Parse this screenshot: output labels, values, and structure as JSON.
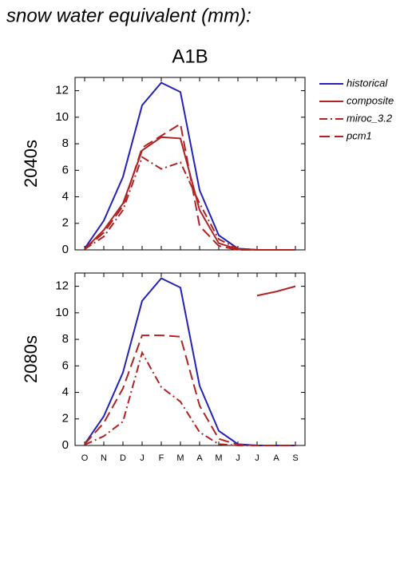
{
  "title": "snow water equivalent (mm):",
  "scenario": "A1B",
  "chart_data": [
    {
      "type": "line",
      "ylabel": "2040s",
      "ylim": [
        0,
        13
      ],
      "yticks": [
        0,
        2,
        4,
        6,
        8,
        10,
        12
      ],
      "series": [
        {
          "name": "historical",
          "color": "#2222bb",
          "linestyle": "solid",
          "values": [
            0.1,
            2.2,
            5.5,
            10.9,
            12.6,
            11.9,
            4.5,
            1.1,
            0.1,
            0,
            0,
            0
          ]
        },
        {
          "name": "composite",
          "color": "#b22222",
          "linestyle": "solid",
          "values": [
            0.05,
            1.5,
            3.5,
            7.5,
            8.5,
            8.4,
            3.0,
            0.5,
            0.05,
            0,
            0,
            0
          ]
        },
        {
          "name": "miroc_3.2",
          "color": "#b22222",
          "linestyle": "dashdot",
          "values": [
            0.05,
            1.0,
            3.0,
            7.0,
            6.1,
            6.6,
            3.5,
            0.8,
            0.1,
            0,
            0,
            0
          ]
        },
        {
          "name": "pcm1",
          "color": "#b22222",
          "linestyle": "dashed",
          "values": [
            0.05,
            1.3,
            3.3,
            7.7,
            8.6,
            9.5,
            1.8,
            0.3,
            0,
            0,
            0,
            0
          ]
        }
      ]
    },
    {
      "type": "line",
      "ylabel": "2080s",
      "ylim": [
        0,
        13
      ],
      "yticks": [
        0,
        2,
        4,
        6,
        8,
        10,
        12
      ],
      "categories": [
        "O",
        "N",
        "D",
        "J",
        "F",
        "M",
        "A",
        "M",
        "J",
        "J",
        "A",
        "S"
      ],
      "series": [
        {
          "color": "#2222bb",
          "linestyle": "solid",
          "values": [
            0.1,
            2.2,
            5.5,
            10.9,
            12.6,
            11.9,
            4.5,
            1.1,
            0.1,
            0,
            0,
            0
          ]
        },
        {
          "color": "#b22222",
          "linestyle": "solid",
          "values": [
            null,
            null,
            null,
            null,
            null,
            null,
            null,
            null,
            null,
            11.3,
            11.6,
            12.0
          ]
        },
        {
          "color": "#b22222",
          "linestyle": "dashdot",
          "values": [
            0.05,
            0.7,
            1.8,
            7.0,
            4.4,
            3.3,
            1.0,
            0.1,
            0,
            0,
            0,
            0
          ]
        },
        {
          "color": "#b22222",
          "linestyle": "dashed",
          "values": [
            0.1,
            1.7,
            4.3,
            8.3,
            8.3,
            8.2,
            3.0,
            0.5,
            0.05,
            0,
            0,
            0
          ]
        }
      ]
    }
  ]
}
